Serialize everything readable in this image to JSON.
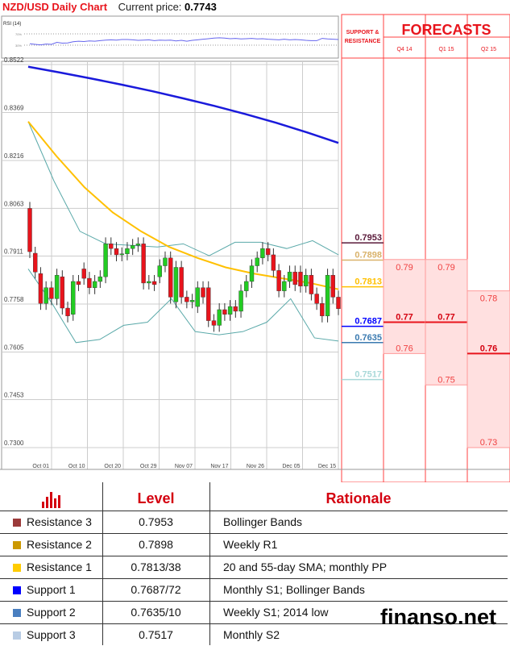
{
  "header": {
    "title": "NZD/USD Daily Chart",
    "current_price_label": "Current price:",
    "current_price": "0.7743"
  },
  "chart_data": {
    "type": "candlestick",
    "title": "NZD/USD Daily Chart",
    "rsi": {
      "label": "RSI (14)",
      "levels": [
        "70%",
        "30%"
      ],
      "values": [
        35,
        33,
        31,
        34,
        33,
        40,
        37,
        38,
        42,
        44,
        43,
        45,
        44,
        46,
        48,
        49,
        48,
        50,
        50,
        49,
        47,
        48,
        49,
        46,
        48,
        47,
        48,
        45,
        47,
        44,
        47,
        49,
        51,
        53,
        55,
        56,
        55,
        53,
        54,
        52,
        53,
        54,
        52,
        53,
        51,
        50,
        49,
        51,
        49,
        50,
        49,
        47,
        46,
        46,
        54,
        52,
        51,
        50
      ]
    },
    "y_ticks": [
      "0.8522",
      "0.8369",
      "0.8216",
      "0.8063",
      "0.7911",
      "0.7758",
      "0.7605",
      "0.7453",
      "0.7300"
    ],
    "ylim": [
      0.73,
      0.8522
    ],
    "x_ticks": [
      "Oct 01",
      "Oct 10",
      "Oct 20",
      "Oct 29",
      "Nov 07",
      "Nov 17",
      "Nov 26",
      "Dec 05",
      "Dec 15"
    ],
    "candles_open": [
      0.8063,
      0.792,
      0.7855,
      0.776,
      0.781,
      0.7775,
      0.7845,
      0.7745,
      0.7725,
      0.783,
      0.787,
      0.784,
      0.781,
      0.783,
      0.7845,
      0.795,
      0.7935,
      0.7915,
      0.7918,
      0.7935,
      0.7945,
      0.795,
      0.7825,
      0.783,
      0.7845,
      0.788,
      0.7905,
      0.7765,
      0.7875,
      0.778,
      0.7765,
      0.775,
      0.781,
      0.781,
      0.7705,
      0.769,
      0.774,
      0.7725,
      0.775,
      0.7735,
      0.78,
      0.783,
      0.788,
      0.7905,
      0.7935,
      0.7915,
      0.7865,
      0.78,
      0.783,
      0.786,
      0.786,
      0.7815,
      0.785,
      0.779,
      0.776,
      0.772,
      0.785,
      0.778
    ],
    "candles_close": [
      0.7925,
      0.786,
      0.776,
      0.781,
      0.7775,
      0.785,
      0.7745,
      0.772,
      0.783,
      0.782,
      0.784,
      0.781,
      0.783,
      0.7845,
      0.795,
      0.7935,
      0.7915,
      0.7918,
      0.7935,
      0.7945,
      0.795,
      0.7825,
      0.783,
      0.782,
      0.788,
      0.7905,
      0.778,
      0.7875,
      0.778,
      0.7765,
      0.777,
      0.781,
      0.778,
      0.7705,
      0.769,
      0.774,
      0.7725,
      0.775,
      0.7735,
      0.78,
      0.783,
      0.788,
      0.7905,
      0.7935,
      0.7915,
      0.7865,
      0.78,
      0.783,
      0.786,
      0.782,
      0.7815,
      0.785,
      0.779,
      0.776,
      0.772,
      0.785,
      0.778,
      0.7743
    ],
    "sma_200": [
      0.8515,
      0.8497,
      0.8478,
      0.8458,
      0.8437,
      0.8414,
      0.839,
      0.8364,
      0.8336,
      0.8305,
      0.8272
    ],
    "sma_55": [
      0.834,
      0.823,
      0.813,
      0.805,
      0.799,
      0.794,
      0.7905,
      0.7875,
      0.7855,
      0.784,
      0.7825,
      0.7805
    ],
    "bollinger_upper": [
      0.834,
      0.815,
      0.799,
      0.795,
      0.7945,
      0.794,
      0.795,
      0.7912,
      0.7955,
      0.7955,
      0.7935,
      0.796,
      0.7915
    ],
    "bollinger_lower": [
      0.787,
      0.776,
      0.7635,
      0.7645,
      0.769,
      0.77,
      0.7775,
      0.767,
      0.766,
      0.767,
      0.77,
      0.7775,
      0.765,
      0.764
    ],
    "colors": {
      "up": "#22cc22",
      "down": "#e8141c",
      "sma_200": "#1a1adb",
      "sma_55": "#ffc000",
      "bollinger": "#5aa9a9",
      "rsi": "#6666ee"
    }
  },
  "panel": {
    "sr_header": "SUPPORT & RESISTANCE",
    "forecasts_header": "FORECASTS",
    "quarters": [
      "Q4 14",
      "Q1 15",
      "Q2 15"
    ],
    "levels": [
      {
        "value": "0.7953",
        "color": "#5a1a3a"
      },
      {
        "value": "0.7898",
        "color": "#d9b26a"
      },
      {
        "value": "0.7813",
        "color": "#ffc000"
      },
      {
        "value": "0.7687",
        "color": "#0000ff"
      },
      {
        "value": "0.7635",
        "color": "#3a7ab0"
      },
      {
        "value": "0.7517",
        "color": "#a8d8d8"
      }
    ],
    "forecasts": [
      {
        "high": "0.79",
        "median": "0.77",
        "low": "0.76"
      },
      {
        "high": "0.79",
        "median": "0.77",
        "low": "0.75"
      },
      {
        "high": "0.78",
        "median": "0.76",
        "low": "0.73"
      }
    ]
  },
  "table": {
    "headers": {
      "icon": "bar-chart-icon",
      "level": "Level",
      "rationale": "Rationale"
    },
    "rows": [
      {
        "name": "Resistance 3",
        "level": "0.7953",
        "rationale": "Bollinger Bands",
        "color": "#9b3a3a"
      },
      {
        "name": "Resistance 2",
        "level": "0.7898",
        "rationale": "Weekly R1",
        "color": "#cc9900"
      },
      {
        "name": "Resistance 1",
        "level": "0.7813/38",
        "rationale": "20 and 55-day SMA; monthly PP",
        "color": "#ffcc00"
      },
      {
        "name": "Support 1",
        "level": "0.7687/72",
        "rationale": "Monthly S1; Bollinger Bands",
        "color": "#0000ff"
      },
      {
        "name": "Support 2",
        "level": "0.7635/10",
        "rationale": "Weekly S1; 2014 low",
        "color": "#4a7fc0"
      },
      {
        "name": "Support 3",
        "level": "0.7517",
        "rationale": "Monthly S2",
        "color": "#b8cce4"
      }
    ]
  },
  "watermark": "finanso.net"
}
